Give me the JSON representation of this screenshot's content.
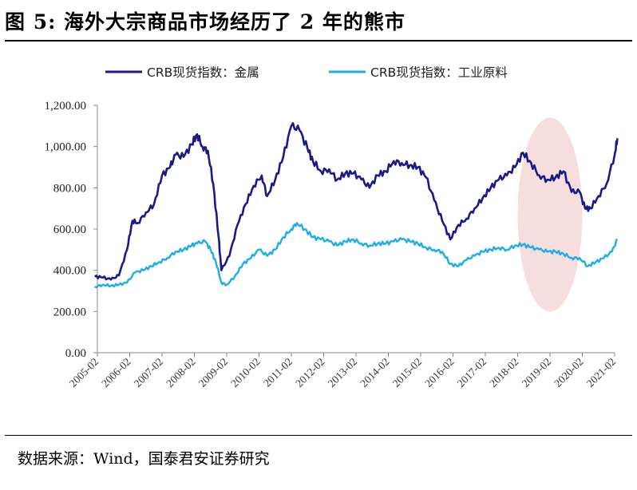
{
  "figure": {
    "title": "图 5:  海外大宗商品市场经历了 2 年的熊市",
    "source": "数据来源：Wind，国泰君安证券研究"
  },
  "chart_data": {
    "type": "line",
    "title": "",
    "xlabel": "",
    "ylabel": "",
    "ylim": [
      0,
      1200
    ],
    "y_ticks": [
      "0.00",
      "200.00",
      "400.00",
      "600.00",
      "800.00",
      "1,000.00",
      "1,200.00"
    ],
    "x_ticks": [
      "2005-02",
      "2006-02",
      "2007-02",
      "2008-02",
      "2009-02",
      "2010-02",
      "2011-02",
      "2012-02",
      "2013-02",
      "2014-02",
      "2015-02",
      "2016-02",
      "2017-02",
      "2018-02",
      "2019-02",
      "2020-02",
      "2021-02"
    ],
    "legend_position": "top-center",
    "grid": false,
    "highlight": {
      "type": "ellipse",
      "x_range": [
        "2018-02",
        "2020-02"
      ],
      "y_range": [
        200,
        1140
      ],
      "color": "#f6dede"
    },
    "series": [
      {
        "name": "CRB现货指数：金属",
        "color": "#1a1a8c",
        "x": [
          "2005-01",
          "2005-04",
          "2005-07",
          "2005-10",
          "2006-01",
          "2006-03",
          "2006-05",
          "2006-08",
          "2006-11",
          "2007-02",
          "2007-05",
          "2007-07",
          "2007-10",
          "2008-01",
          "2008-03",
          "2008-05",
          "2008-07",
          "2008-09",
          "2008-11",
          "2008-12",
          "2009-03",
          "2009-06",
          "2009-09",
          "2009-12",
          "2010-03",
          "2010-05",
          "2010-08",
          "2010-11",
          "2011-02",
          "2011-05",
          "2011-08",
          "2011-10",
          "2012-01",
          "2012-04",
          "2012-07",
          "2012-10",
          "2013-01",
          "2013-04",
          "2013-07",
          "2013-10",
          "2014-01",
          "2014-04",
          "2014-07",
          "2014-10",
          "2015-01",
          "2015-04",
          "2015-07",
          "2015-10",
          "2016-01",
          "2016-04",
          "2016-07",
          "2016-10",
          "2017-01",
          "2017-04",
          "2017-07",
          "2017-10",
          "2018-01",
          "2018-04",
          "2018-07",
          "2018-10",
          "2019-01",
          "2019-04",
          "2019-07",
          "2019-10",
          "2020-01",
          "2020-03",
          "2020-05",
          "2020-08",
          "2020-11",
          "2021-02",
          "2021-03"
        ],
        "values": [
          370,
          365,
          355,
          375,
          500,
          640,
          630,
          680,
          720,
          860,
          900,
          960,
          950,
          1010,
          1060,
          1000,
          980,
          820,
          560,
          400,
          470,
          620,
          720,
          810,
          860,
          760,
          840,
          950,
          1100,
          1080,
          990,
          930,
          880,
          890,
          840,
          870,
          870,
          840,
          800,
          860,
          880,
          930,
          920,
          910,
          900,
          850,
          740,
          640,
          550,
          620,
          650,
          700,
          750,
          800,
          840,
          860,
          900,
          970,
          920,
          860,
          840,
          850,
          880,
          780,
          780,
          700,
          700,
          760,
          820,
          960,
          1040
        ]
      },
      {
        "name": "CRB现货指数：工业原料",
        "color": "#1eaee6",
        "x": [
          "2005-01",
          "2005-04",
          "2005-07",
          "2005-10",
          "2006-01",
          "2006-04",
          "2006-07",
          "2006-10",
          "2007-01",
          "2007-04",
          "2007-07",
          "2007-10",
          "2008-01",
          "2008-03",
          "2008-06",
          "2008-08",
          "2008-10",
          "2008-12",
          "2009-02",
          "2009-05",
          "2009-08",
          "2009-11",
          "2010-02",
          "2010-05",
          "2010-08",
          "2010-11",
          "2011-02",
          "2011-04",
          "2011-07",
          "2011-10",
          "2012-01",
          "2012-04",
          "2012-07",
          "2012-10",
          "2013-01",
          "2013-04",
          "2013-07",
          "2013-10",
          "2014-01",
          "2014-04",
          "2014-07",
          "2014-10",
          "2015-01",
          "2015-04",
          "2015-07",
          "2015-10",
          "2016-01",
          "2016-04",
          "2016-07",
          "2016-10",
          "2017-01",
          "2017-04",
          "2017-07",
          "2017-10",
          "2018-01",
          "2018-04",
          "2018-07",
          "2018-10",
          "2019-01",
          "2019-04",
          "2019-07",
          "2019-10",
          "2020-01",
          "2020-04",
          "2020-07",
          "2020-10",
          "2021-01",
          "2021-03"
        ],
        "values": [
          320,
          330,
          325,
          330,
          340,
          390,
          400,
          420,
          440,
          460,
          490,
          500,
          520,
          530,
          540,
          500,
          440,
          340,
          330,
          370,
          430,
          460,
          500,
          470,
          500,
          560,
          600,
          630,
          600,
          560,
          550,
          540,
          520,
          540,
          550,
          530,
          520,
          530,
          530,
          540,
          550,
          540,
          530,
          510,
          500,
          490,
          430,
          420,
          450,
          470,
          490,
          500,
          510,
          500,
          520,
          525,
          510,
          500,
          490,
          490,
          480,
          460,
          460,
          420,
          440,
          460,
          490,
          550
        ]
      }
    ]
  }
}
